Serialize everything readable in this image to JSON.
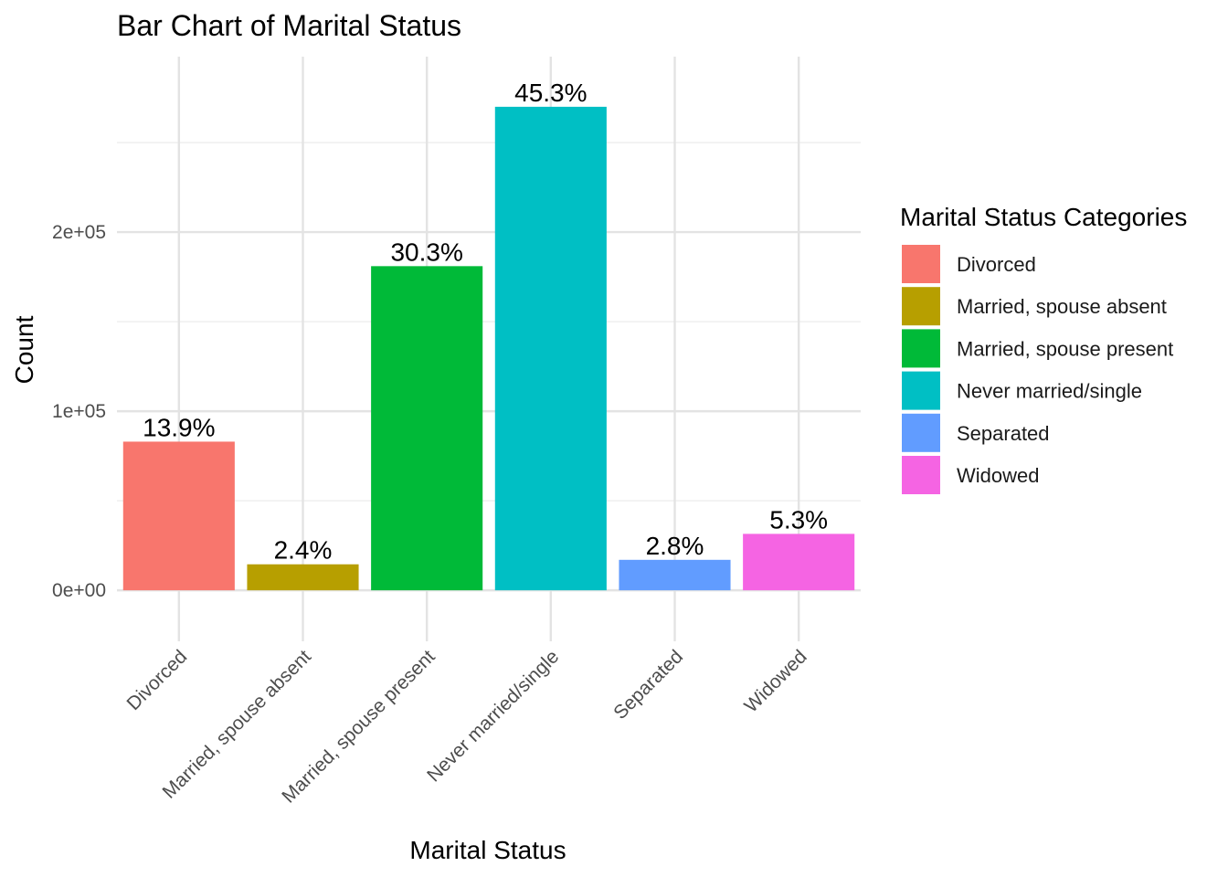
{
  "chart_data": {
    "type": "bar",
    "title": "Bar Chart of Marital Status",
    "xlabel": "Marital Status",
    "ylabel": "Count",
    "categories": [
      "Divorced",
      "Married, spouse absent",
      "Married, spouse present",
      "Never married/single",
      "Separated",
      "Widowed"
    ],
    "values": [
      83000,
      14500,
      181000,
      270000,
      17000,
      31500
    ],
    "labels": [
      "13.9%",
      "2.4%",
      "30.3%",
      "45.3%",
      "2.8%",
      "5.3%"
    ],
    "colors": [
      "#F8766D",
      "#B79F00",
      "#00BA38",
      "#00BFC4",
      "#619CFF",
      "#F564E3"
    ],
    "ylim": [
      -28500,
      298000
    ],
    "yticks": [
      0,
      100000,
      200000
    ],
    "ytick_labels": [
      "0e+00",
      "1e+05",
      "2e+05"
    ],
    "yminor": [
      50000,
      150000,
      250000
    ],
    "grid": true,
    "x_tick_rotation": -45,
    "legend": {
      "title": "Marital Status Categories",
      "position": "right",
      "items": [
        "Divorced",
        "Married, spouse absent",
        "Married, spouse present",
        "Never married/single",
        "Separated",
        "Widowed"
      ]
    }
  }
}
